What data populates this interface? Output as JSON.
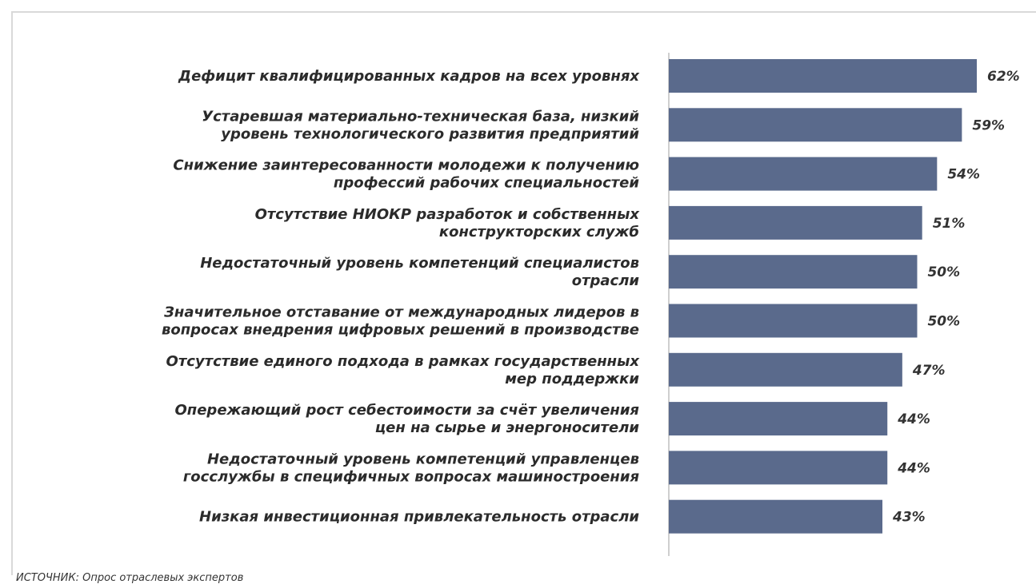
{
  "chart_data": {
    "type": "bar",
    "orientation": "horizontal",
    "categories": [
      "Дефицит квалифицированных кадров на всех уровнях",
      "Устаревшая материально-техническая база, низкий уровень технологического развития предприятий",
      "Снижение заинтересованности молодежи к получению профессий рабочих специальностей",
      "Отсутствие НИОКР разработок и собственных конструкторских служб",
      "Недостаточный уровень компетенций специалистов отрасли",
      "Значительное отставание от международных лидеров в вопросах внедрения цифровых решений в производстве",
      "Отсутствие единого подхода в рамках государственных мер поддержки",
      "Опережающий рост себестоимости за счёт увеличения цен на сырье и энергоносители",
      "Недостаточный уровень компетенций управленцев госслужбы в специфичных вопросах машиностроения",
      "Низкая инвестиционная привлекательность отрасли"
    ],
    "category_lines": [
      [
        "Дефицит квалифицированных кадров на всех уровнях"
      ],
      [
        "Устаревшая материально-техническая база, низкий",
        "уровень технологического развития предприятий"
      ],
      [
        "Снижение заинтересованности молодежи к получению",
        "профессий рабочих специальностей"
      ],
      [
        "Отсутствие НИОКР разработок и собственных",
        "конструкторских служб"
      ],
      [
        "Недостаточный уровень компетенций специалистов",
        "отрасли"
      ],
      [
        "Значительное отставание от международных лидеров в",
        "вопросах внедрения цифровых решений в производстве"
      ],
      [
        "Отсутствие единого подхода в рамках государственных",
        "мер поддержки"
      ],
      [
        "Опережающий рост себестоимости за счёт увеличения",
        "цен на сырье и энергоносители"
      ],
      [
        "Недостаточный уровень компетенций управленцев",
        "госслужбы в специфичных вопросах машиностроения"
      ],
      [
        "Низкая инвестиционная привлекательность отрасли"
      ]
    ],
    "values": [
      62,
      59,
      54,
      51,
      50,
      50,
      47,
      44,
      44,
      43
    ],
    "value_labels": [
      "62%",
      "59%",
      "54%",
      "51%",
      "50%",
      "50%",
      "47%",
      "44%",
      "44%",
      "43%"
    ],
    "xlim": [
      0,
      62
    ],
    "bar_color": "#5a6a8c",
    "grid": false
  },
  "source_note": "ИСТОЧНИК: Опрос отраслевых экспертов"
}
